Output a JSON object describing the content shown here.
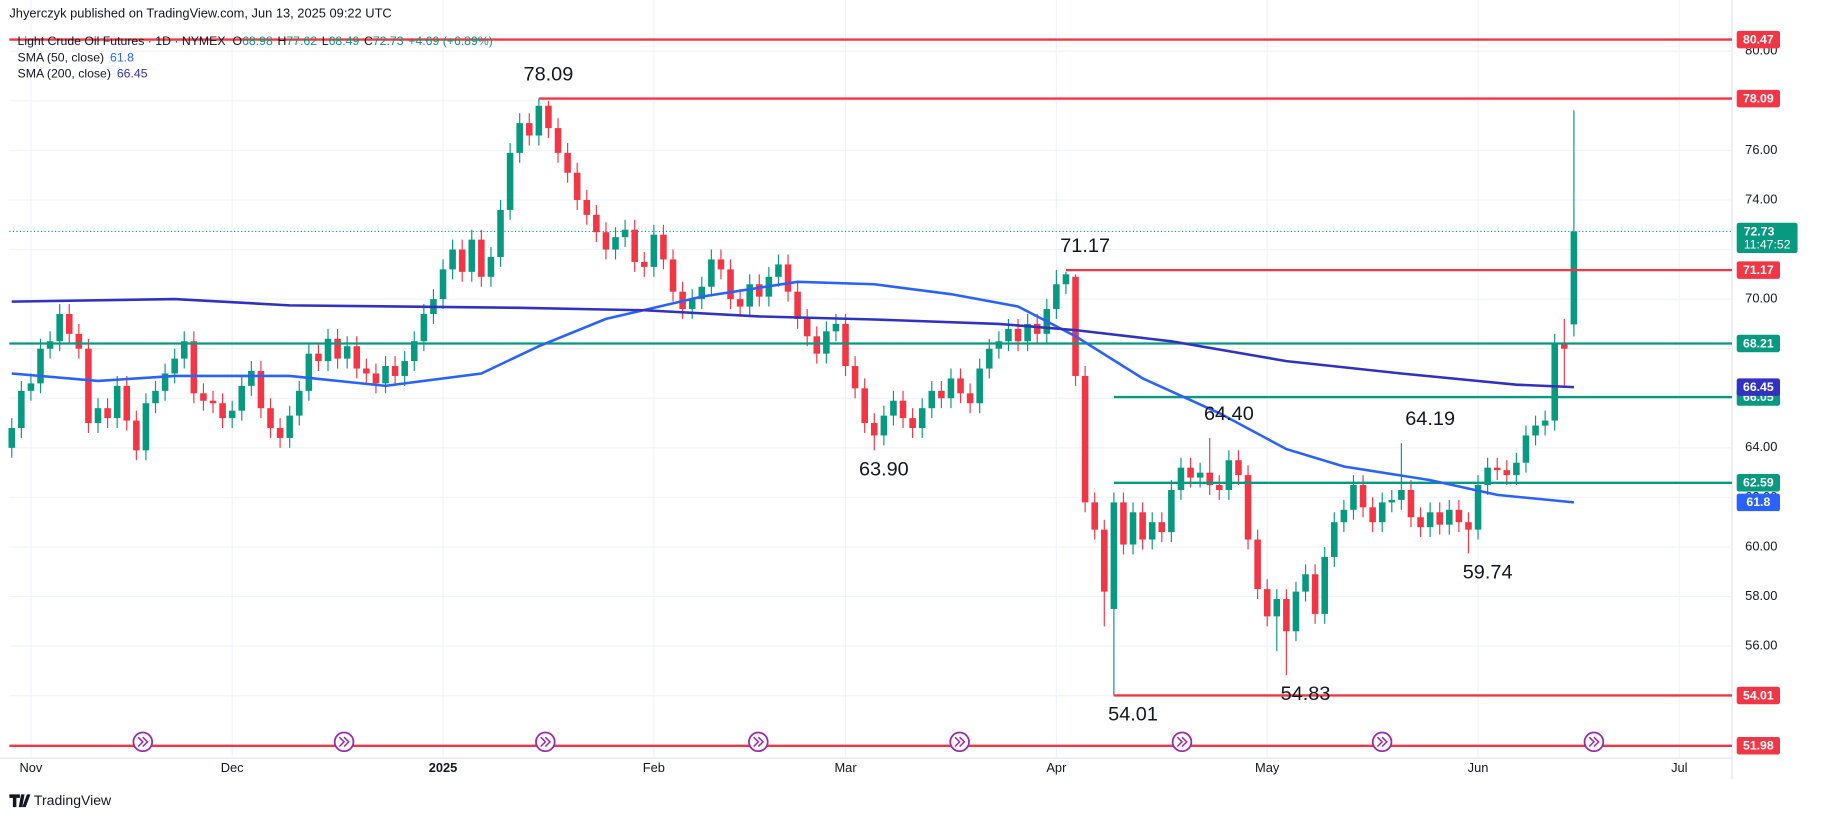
{
  "header": {
    "published": "Jhyerczyk published on TradingView.com, Jun 13, 2025 09:22 UTC"
  },
  "footer": {
    "brand": "TradingView"
  },
  "chart_data": {
    "type": "candlestick",
    "title": "Light Crude Oil Futures · 1D · NYMEX",
    "ohlc_labels": [
      "O",
      "H",
      "L",
      "C"
    ],
    "change_label": "+4.69 (+6.89%)",
    "countdown": "11:47:52",
    "up_color": "#089981",
    "down_color": "#f23645",
    "open": [
      64.0,
      64.8,
      66.3,
      66.6,
      68.0,
      68.3,
      69.4,
      68.6,
      68.0,
      65.0,
      65.6,
      65.2,
      66.5,
      65.1,
      63.9,
      65.8,
      66.3,
      67.0,
      67.6,
      68.3,
      66.2,
      65.9,
      65.8,
      65.2,
      65.5,
      66.5,
      67.1,
      65.6,
      64.8,
      64.4,
      65.3,
      66.3,
      67.8,
      67.5,
      68.4,
      67.6,
      68.1,
      67.2,
      67.0,
      66.6,
      67.3,
      66.9,
      67.5,
      68.3,
      69.4,
      70.0,
      71.2,
      72.0,
      71.1,
      72.4,
      70.9,
      71.7,
      73.6,
      75.9,
      77.1,
      76.6,
      77.8,
      76.9,
      75.9,
      75.1,
      74.0,
      73.4,
      72.7,
      72.0,
      72.5,
      72.8,
      71.5,
      71.3,
      72.6,
      71.6,
      70.3,
      69.6,
      70.0,
      70.5,
      71.6,
      71.2,
      70.0,
      69.7,
      70.6,
      70.1,
      70.9,
      71.4,
      70.3,
      69.2,
      68.5,
      67.8,
      68.7,
      69.0,
      67.3,
      66.4,
      65.0,
      64.5,
      65.3,
      65.9,
      65.2,
      64.8,
      65.6,
      66.3,
      66.0,
      66.8,
      66.2,
      65.8,
      67.2,
      68.0,
      68.3,
      68.8,
      68.3,
      69.0,
      68.6,
      69.6,
      70.6,
      70.9,
      66.9,
      61.8,
      60.7,
      57.5,
      61.8,
      60.1,
      61.4,
      60.3,
      61.0,
      60.6,
      62.3,
      63.2,
      62.8,
      63.0,
      62.5,
      62.3,
      63.5,
      62.9,
      60.3,
      58.3,
      57.2,
      57.9,
      56.6,
      58.2,
      58.9,
      57.3,
      59.6,
      61.0,
      61.5,
      62.5,
      61.6,
      61.0,
      61.8,
      61.9,
      62.3,
      61.2,
      60.8,
      61.4,
      60.9,
      61.5,
      61.0,
      60.7,
      62.5,
      63.2,
      63.1,
      62.9,
      63.4,
      64.5,
      64.9,
      65.1,
      68.2,
      68.98
    ],
    "high": [
      65.2,
      66.7,
      67.0,
      68.4,
      68.7,
      69.8,
      69.8,
      69.0,
      68.4,
      66.0,
      66.0,
      66.9,
      66.9,
      65.5,
      66.2,
      66.7,
      67.4,
      68.0,
      68.7,
      68.7,
      66.6,
      66.3,
      66.2,
      65.9,
      66.9,
      67.5,
      67.5,
      66.0,
      65.2,
      65.7,
      66.7,
      68.2,
      68.2,
      68.8,
      68.8,
      68.5,
      68.5,
      67.6,
      67.4,
      67.7,
      67.7,
      67.9,
      68.7,
      69.8,
      70.4,
      71.6,
      72.4,
      72.4,
      72.8,
      72.8,
      72.1,
      74.0,
      76.3,
      77.5,
      77.5,
      78.09,
      78.0,
      77.3,
      76.3,
      75.5,
      74.4,
      73.8,
      73.1,
      72.9,
      73.2,
      73.2,
      71.9,
      73.0,
      73.0,
      72.0,
      70.7,
      70.4,
      70.9,
      72.0,
      72.0,
      71.6,
      70.4,
      71.0,
      71.0,
      71.3,
      71.8,
      71.8,
      70.7,
      69.6,
      68.9,
      69.1,
      69.4,
      69.4,
      67.7,
      66.8,
      65.4,
      65.7,
      66.3,
      66.3,
      65.6,
      66.0,
      66.7,
      66.7,
      67.2,
      67.2,
      66.6,
      67.6,
      68.4,
      68.7,
      69.2,
      69.2,
      69.4,
      69.4,
      70.0,
      71.17,
      71.1,
      71.0,
      67.3,
      62.2,
      61.1,
      62.2,
      62.2,
      61.8,
      61.8,
      61.4,
      61.4,
      62.7,
      63.6,
      63.6,
      63.4,
      64.4,
      62.9,
      63.9,
      63.9,
      63.3,
      60.7,
      58.7,
      58.3,
      58.3,
      58.6,
      59.3,
      59.3,
      60.0,
      61.4,
      61.9,
      62.9,
      62.9,
      62.0,
      62.2,
      62.3,
      64.19,
      62.7,
      61.6,
      61.8,
      61.8,
      61.9,
      61.9,
      61.4,
      62.9,
      63.6,
      63.6,
      63.5,
      63.8,
      64.9,
      65.3,
      65.5,
      68.6,
      69.2,
      77.62
    ],
    "low": [
      63.6,
      64.4,
      65.9,
      66.2,
      67.6,
      67.9,
      68.2,
      67.6,
      64.6,
      64.6,
      64.8,
      64.8,
      64.7,
      63.5,
      63.5,
      65.4,
      65.9,
      66.6,
      67.2,
      65.8,
      65.5,
      65.4,
      64.8,
      64.8,
      65.1,
      66.1,
      65.2,
      64.4,
      64.0,
      64.0,
      64.9,
      65.9,
      67.1,
      67.1,
      67.2,
      67.2,
      66.8,
      66.6,
      66.2,
      66.2,
      66.5,
      66.5,
      67.1,
      67.9,
      69.0,
      69.6,
      70.8,
      70.7,
      70.7,
      70.5,
      70.5,
      71.3,
      73.2,
      75.5,
      76.2,
      76.2,
      76.5,
      75.5,
      74.7,
      73.6,
      73.0,
      72.3,
      71.6,
      71.6,
      72.1,
      71.1,
      70.9,
      70.9,
      71.2,
      69.9,
      69.2,
      69.2,
      69.6,
      70.1,
      70.8,
      69.6,
      69.3,
      69.3,
      69.7,
      69.7,
      70.5,
      69.9,
      68.8,
      68.1,
      67.4,
      67.4,
      68.3,
      66.9,
      66.0,
      64.6,
      63.9,
      64.1,
      64.9,
      64.8,
      64.4,
      64.4,
      65.2,
      65.6,
      65.6,
      65.8,
      65.4,
      65.4,
      66.8,
      67.6,
      67.9,
      67.9,
      67.9,
      68.2,
      68.2,
      69.2,
      70.2,
      66.5,
      61.4,
      60.3,
      56.8,
      54.01,
      59.7,
      59.7,
      59.9,
      59.9,
      60.2,
      60.2,
      61.9,
      62.4,
      62.4,
      62.1,
      61.9,
      61.9,
      62.5,
      59.9,
      57.9,
      56.8,
      55.8,
      54.83,
      56.2,
      57.8,
      56.9,
      56.9,
      59.2,
      60.6,
      61.1,
      61.2,
      60.6,
      60.6,
      61.4,
      61.5,
      60.8,
      60.4,
      60.4,
      60.5,
      60.5,
      60.6,
      59.74,
      60.3,
      62.1,
      62.7,
      62.5,
      62.5,
      63.0,
      64.1,
      64.5,
      64.7,
      66.5,
      68.49
    ],
    "close": [
      64.8,
      66.3,
      66.6,
      68.0,
      68.3,
      69.4,
      68.6,
      68.0,
      65.0,
      65.6,
      65.2,
      66.5,
      65.1,
      63.9,
      65.8,
      66.3,
      67.0,
      67.6,
      68.3,
      66.2,
      65.9,
      65.8,
      65.2,
      65.5,
      66.5,
      67.1,
      65.6,
      64.8,
      64.4,
      65.3,
      66.3,
      67.8,
      67.5,
      68.4,
      67.6,
      68.1,
      67.2,
      67.0,
      66.6,
      67.3,
      66.9,
      67.5,
      68.3,
      69.4,
      70.0,
      71.2,
      72.0,
      71.1,
      72.4,
      70.9,
      71.7,
      73.6,
      75.9,
      77.1,
      76.6,
      77.8,
      76.9,
      75.9,
      75.1,
      74.0,
      73.4,
      72.7,
      72.0,
      72.5,
      72.8,
      71.5,
      71.3,
      72.6,
      71.6,
      70.3,
      69.6,
      70.0,
      70.5,
      71.6,
      71.2,
      70.0,
      69.7,
      70.6,
      70.1,
      70.9,
      71.4,
      70.3,
      69.2,
      68.5,
      67.8,
      68.7,
      69.0,
      67.3,
      66.4,
      65.0,
      64.5,
      65.3,
      65.9,
      65.2,
      64.8,
      65.6,
      66.3,
      66.0,
      66.8,
      66.2,
      65.8,
      67.2,
      68.0,
      68.3,
      68.8,
      68.3,
      69.0,
      68.6,
      69.6,
      70.6,
      71.0,
      66.9,
      61.8,
      60.7,
      58.2,
      61.8,
      60.1,
      61.4,
      60.3,
      61.0,
      60.6,
      62.3,
      63.2,
      62.8,
      63.0,
      62.5,
      62.3,
      63.5,
      62.9,
      60.3,
      58.3,
      57.2,
      57.9,
      56.6,
      58.2,
      58.9,
      57.3,
      59.6,
      61.0,
      61.5,
      62.5,
      61.6,
      61.0,
      61.8,
      61.9,
      62.3,
      61.2,
      60.8,
      61.4,
      60.9,
      61.5,
      61.0,
      60.7,
      62.5,
      63.2,
      63.1,
      62.9,
      63.4,
      64.5,
      64.9,
      65.1,
      68.2,
      68.0,
      72.73
    ],
    "xlim": [
      -0.25,
      179.5
    ],
    "xticks": [
      {
        "value": 2,
        "label": "Nov"
      },
      {
        "value": 23,
        "label": "Dec"
      },
      {
        "value": 45,
        "label": "2025"
      },
      {
        "value": 67,
        "label": "Feb"
      },
      {
        "value": 87,
        "label": "Mar"
      },
      {
        "value": 109,
        "label": "Apr"
      },
      {
        "value": 131,
        "label": "May"
      },
      {
        "value": 153,
        "label": "Jun"
      },
      {
        "value": 174,
        "label": "Jul"
      }
    ],
    "ylim": [
      51.48,
      80.75
    ],
    "yticks": [
      {
        "value": 52,
        "label": "52.00"
      },
      {
        "value": 54,
        "label": "54.00"
      },
      {
        "value": 56,
        "label": "56.00"
      },
      {
        "value": 58,
        "label": "58.00"
      },
      {
        "value": 60,
        "label": "60.00"
      },
      {
        "value": 62,
        "label": "62.00"
      },
      {
        "value": 64,
        "label": "64.00"
      },
      {
        "value": 66,
        "label": "66.00"
      },
      {
        "value": 68,
        "label": "68.00"
      },
      {
        "value": 70,
        "label": "70.00"
      },
      {
        "value": 72,
        "label": "72.00"
      },
      {
        "value": 74,
        "label": "74.00"
      },
      {
        "value": 76,
        "label": "76.00"
      },
      {
        "value": 78,
        "label": "78.00"
      },
      {
        "value": 80,
        "label": "80.00"
      }
    ],
    "grid": true,
    "series": [
      {
        "name": "SMA (50, close)",
        "color": "#2962ff",
        "x": [
          0,
          9,
          17,
          29,
          39,
          49,
          55,
          62,
          72,
          82,
          90,
          98,
          105,
          111,
          118,
          126,
          133,
          139,
          148,
          155,
          163
        ],
        "values": [
          67.0,
          66.7,
          66.9,
          66.9,
          66.5,
          67.0,
          68.1,
          69.2,
          70.1,
          70.7,
          70.6,
          70.2,
          69.7,
          68.5,
          66.8,
          65.4,
          63.95,
          63.25,
          62.7,
          62.1,
          61.8
        ]
      },
      {
        "name": "SMA (200, close)",
        "color": "#3131c4",
        "x": [
          0,
          17,
          29,
          41,
          53,
          66,
          78,
          90,
          103,
          111,
          121,
          133,
          145,
          157,
          163
        ],
        "values": [
          69.9,
          70.0,
          69.75,
          69.7,
          69.65,
          69.55,
          69.3,
          69.18,
          69.0,
          68.75,
          68.3,
          67.5,
          67.0,
          66.55,
          66.45
        ]
      }
    ],
    "levels": [
      {
        "value": 80.47,
        "color": "#f23645"
      },
      {
        "value": 78.09,
        "color": "#f23645",
        "x_start": 55
      },
      {
        "value": 71.17,
        "color": "#f23645",
        "x_start": 110
      },
      {
        "value": 68.21,
        "color": "#089981"
      },
      {
        "value": 66.05,
        "color": "#089981",
        "x_start": 115
      },
      {
        "value": 62.59,
        "color": "#089981",
        "x_start": 115
      },
      {
        "value": 54.01,
        "color": "#f23645",
        "x_start": 115
      },
      {
        "value": 51.98,
        "color": "#f23645"
      }
    ],
    "annotations": [
      {
        "value": 78.09,
        "label": "78.09",
        "x": 56,
        "side": "above"
      },
      {
        "value": 71.17,
        "label": "71.17",
        "x": 112,
        "side": "above"
      },
      {
        "value": 63.9,
        "label": "63.90",
        "x": 91,
        "side": "below"
      },
      {
        "value": 64.4,
        "label": "64.40",
        "x": 127,
        "side": "above"
      },
      {
        "value": 64.19,
        "label": "64.19",
        "x": 148,
        "side": "above"
      },
      {
        "value": 59.74,
        "label": "59.74",
        "x": 154,
        "side": "below"
      },
      {
        "value": 54.01,
        "label": "54.01",
        "x": 117,
        "side": "below"
      },
      {
        "value": 54.83,
        "label": "54.83",
        "x": 135,
        "side": "below"
      }
    ]
  }
}
